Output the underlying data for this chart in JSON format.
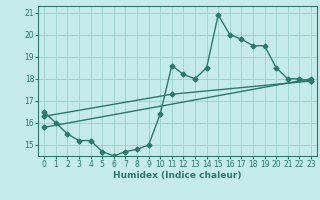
{
  "xlabel": "Humidex (Indice chaleur)",
  "bg_color": "#c5ecea",
  "grid_color": "#9fd4d0",
  "line_color": "#2a7a6a",
  "xlim": [
    -0.5,
    23.5
  ],
  "ylim": [
    14.5,
    21.3
  ],
  "x_ticks": [
    0,
    1,
    2,
    3,
    4,
    5,
    6,
    7,
    8,
    9,
    10,
    11,
    12,
    13,
    14,
    15,
    16,
    17,
    18,
    19,
    20,
    21,
    22,
    23
  ],
  "y_ticks": [
    15,
    16,
    17,
    18,
    19,
    20,
    21
  ],
  "series1_x": [
    0,
    1,
    2,
    3,
    4,
    5,
    6,
    7,
    8,
    9,
    10,
    11,
    12,
    13,
    14,
    15,
    16,
    17,
    18,
    19,
    20,
    21,
    22,
    23
  ],
  "series1_y": [
    16.5,
    16.0,
    15.5,
    15.2,
    15.2,
    14.7,
    14.5,
    14.7,
    14.8,
    15.0,
    16.4,
    18.6,
    18.2,
    18.0,
    18.5,
    20.9,
    20.0,
    19.8,
    19.5,
    19.5,
    18.5,
    18.0,
    18.0,
    17.9
  ],
  "series2_x": [
    0,
    23
  ],
  "series2_y": [
    15.8,
    18.0
  ],
  "series3_x": [
    0,
    11,
    23
  ],
  "series3_y": [
    16.3,
    17.3,
    17.9
  ]
}
